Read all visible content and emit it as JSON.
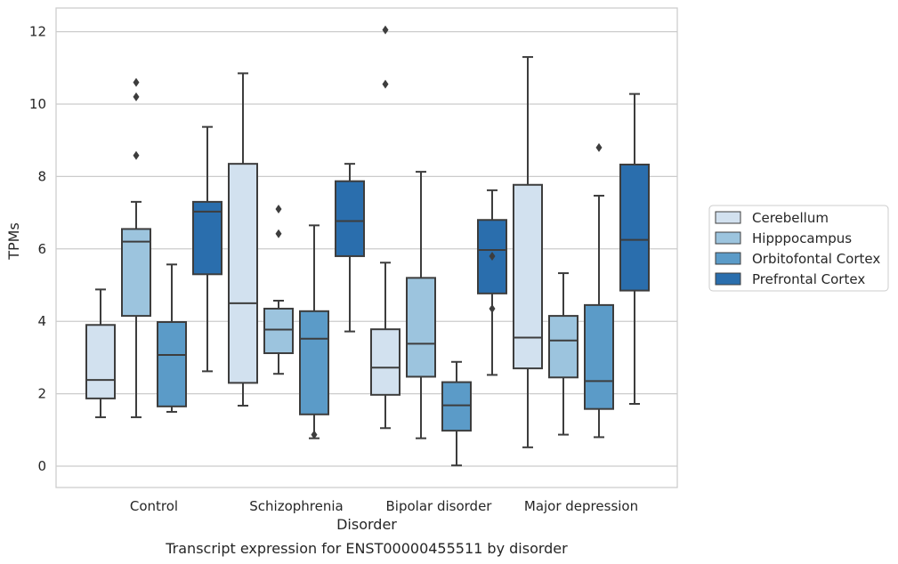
{
  "chart_data": {
    "type": "box",
    "caption": "Transcript expression for ENST00000455511 by disorder",
    "xlabel": "Disorder",
    "ylabel": "TPMs",
    "ylim": [
      -0.6,
      12.65
    ],
    "yticks": [
      0,
      2,
      4,
      6,
      8,
      10,
      12
    ],
    "grid": "horizontal",
    "legend_placement": "right",
    "categories": [
      "Control",
      "Schizophrenia",
      "Bipolar disorder",
      "Major depression"
    ],
    "series": [
      {
        "name": "Cerebellum",
        "color": "#d2e1ef",
        "boxes": [
          {
            "whislo": 1.35,
            "q1": 1.87,
            "med": 2.38,
            "q3": 3.9,
            "whishi": 4.88,
            "fliers": []
          },
          {
            "whislo": 1.67,
            "q1": 2.3,
            "med": 4.5,
            "q3": 8.35,
            "whishi": 10.85,
            "fliers": []
          },
          {
            "whislo": 1.05,
            "q1": 1.97,
            "med": 2.72,
            "q3": 3.78,
            "whishi": 5.62,
            "fliers": [
              10.55,
              12.05
            ]
          },
          {
            "whislo": 0.52,
            "q1": 2.7,
            "med": 3.55,
            "q3": 7.77,
            "whishi": 11.3,
            "fliers": []
          }
        ]
      },
      {
        "name": "Hipppocampus",
        "color": "#9cc4de",
        "boxes": [
          {
            "whislo": 1.35,
            "q1": 4.15,
            "med": 6.2,
            "q3": 6.55,
            "whishi": 7.3,
            "fliers": [
              8.58,
              10.2,
              10.6
            ]
          },
          {
            "whislo": 2.55,
            "q1": 3.12,
            "med": 3.77,
            "q3": 4.35,
            "whishi": 4.57,
            "fliers": [
              6.42,
              7.1
            ]
          },
          {
            "whislo": 0.77,
            "q1": 2.47,
            "med": 3.38,
            "q3": 5.2,
            "whishi": 8.13,
            "fliers": []
          },
          {
            "whislo": 0.87,
            "q1": 2.45,
            "med": 3.47,
            "q3": 4.15,
            "whishi": 5.33,
            "fliers": []
          }
        ]
      },
      {
        "name": "Orbitofontal Cortex",
        "color": "#5b9bc8",
        "boxes": [
          {
            "whislo": 1.5,
            "q1": 1.65,
            "med": 3.07,
            "q3": 3.98,
            "whishi": 5.57,
            "fliers": []
          },
          {
            "whislo": 0.77,
            "q1": 1.43,
            "med": 3.52,
            "q3": 4.28,
            "whishi": 6.65,
            "fliers": [
              0.87
            ]
          },
          {
            "whislo": 0.02,
            "q1": 0.98,
            "med": 1.68,
            "q3": 2.32,
            "whishi": 2.88,
            "fliers": []
          },
          {
            "whislo": 0.8,
            "q1": 1.58,
            "med": 2.35,
            "q3": 4.45,
            "whishi": 7.47,
            "fliers": [
              8.8
            ]
          }
        ]
      },
      {
        "name": "Prefrontal Cortex",
        "color": "#2a6ead",
        "boxes": [
          {
            "whislo": 2.62,
            "q1": 5.3,
            "med": 7.03,
            "q3": 7.3,
            "whishi": 9.37,
            "fliers": []
          },
          {
            "whislo": 3.72,
            "q1": 5.8,
            "med": 6.77,
            "q3": 7.87,
            "whishi": 8.35,
            "fliers": []
          },
          {
            "whislo": 2.52,
            "q1": 4.77,
            "med": 5.97,
            "q3": 6.8,
            "whishi": 7.62,
            "fliers": [
              4.35,
              5.8
            ]
          },
          {
            "whislo": 1.72,
            "q1": 4.85,
            "med": 6.25,
            "q3": 8.33,
            "whishi": 10.28,
            "fliers": []
          }
        ]
      }
    ]
  }
}
